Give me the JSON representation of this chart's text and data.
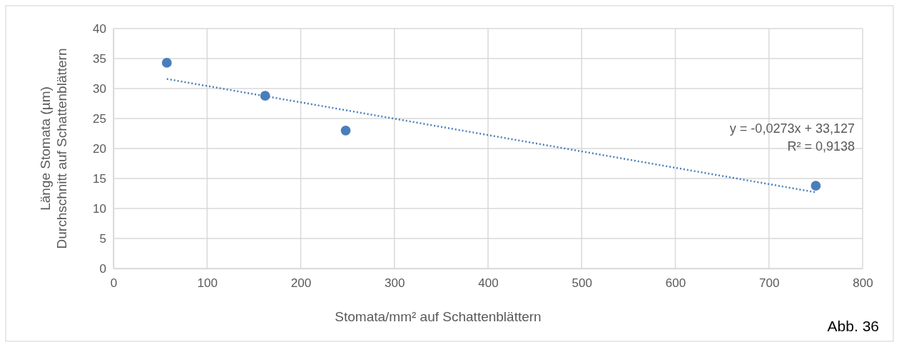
{
  "chart_data": {
    "type": "scatter",
    "xlabel": "Stomata/mm² auf Schattenblättern",
    "ylabel": "Länge Stomata  (µm)\nDurchschnitt auf Schattenblättern",
    "xlim": [
      0,
      800
    ],
    "xticks": [
      0,
      100,
      200,
      300,
      400,
      500,
      600,
      700,
      800
    ],
    "ylim": [
      0,
      40
    ],
    "yticks": [
      0,
      5,
      10,
      15,
      20,
      25,
      30,
      35,
      40
    ],
    "grid": true,
    "marker": "circle",
    "series": [
      {
        "color": "#4a7ebb",
        "x": [
          57,
          162,
          248,
          750
        ],
        "values": [
          34.3,
          28.8,
          23.0,
          13.8
        ]
      },
      {
        "type": "line",
        "color": "#4a7ebb",
        "line_style": "dotted",
        "marker": "none",
        "x": [
          57,
          750
        ],
        "values": [
          31.6,
          12.7
        ]
      }
    ],
    "annotations": [
      "y = -0,0273x + 33,127",
      "R² = 0,9138",
      "Abb. 36"
    ]
  }
}
